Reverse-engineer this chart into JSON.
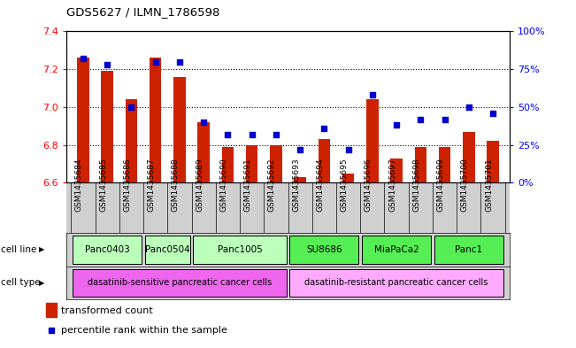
{
  "title": "GDS5627 / ILMN_1786598",
  "samples": [
    "GSM1435684",
    "GSM1435685",
    "GSM1435686",
    "GSM1435687",
    "GSM1435688",
    "GSM1435689",
    "GSM1435690",
    "GSM1435691",
    "GSM1435692",
    "GSM1435693",
    "GSM1435694",
    "GSM1435695",
    "GSM1435696",
    "GSM1435697",
    "GSM1435698",
    "GSM1435699",
    "GSM1435700",
    "GSM1435701"
  ],
  "transformed_count": [
    7.26,
    7.19,
    7.04,
    7.26,
    7.16,
    6.92,
    6.79,
    6.8,
    6.8,
    6.63,
    6.83,
    6.65,
    7.04,
    6.73,
    6.79,
    6.79,
    6.87,
    6.82
  ],
  "percentile_rank": [
    82,
    78,
    50,
    80,
    80,
    40,
    32,
    32,
    32,
    22,
    36,
    22,
    58,
    38,
    42,
    42,
    50,
    46
  ],
  "cell_lines": [
    {
      "name": "Panc0403",
      "start": 0,
      "end": 2,
      "color": "#bbffbb"
    },
    {
      "name": "Panc0504",
      "start": 3,
      "end": 4,
      "color": "#bbffbb"
    },
    {
      "name": "Panc1005",
      "start": 5,
      "end": 8,
      "color": "#bbffbb"
    },
    {
      "name": "SU8686",
      "start": 9,
      "end": 11,
      "color": "#55ee55"
    },
    {
      "name": "MiaPaCa2",
      "start": 12,
      "end": 14,
      "color": "#55ee55"
    },
    {
      "name": "Panc1",
      "start": 15,
      "end": 17,
      "color": "#55ee55"
    }
  ],
  "cell_types": [
    {
      "name": "dasatinib-sensitive pancreatic cancer cells",
      "start": 0,
      "end": 8,
      "color": "#ee66ee"
    },
    {
      "name": "dasatinib-resistant pancreatic cancer cells",
      "start": 9,
      "end": 17,
      "color": "#ffaaff"
    }
  ],
  "ylim_left": [
    6.6,
    7.4
  ],
  "ylim_right": [
    0,
    100
  ],
  "yticks_left": [
    6.6,
    6.8,
    7.0,
    7.2,
    7.4
  ],
  "yticks_right": [
    0,
    25,
    50,
    75,
    100
  ],
  "bar_color": "#cc2200",
  "dot_color": "#0000cc",
  "bar_width": 0.5,
  "bg_color": "#ffffff",
  "tick_bg": "#d0d0d0"
}
